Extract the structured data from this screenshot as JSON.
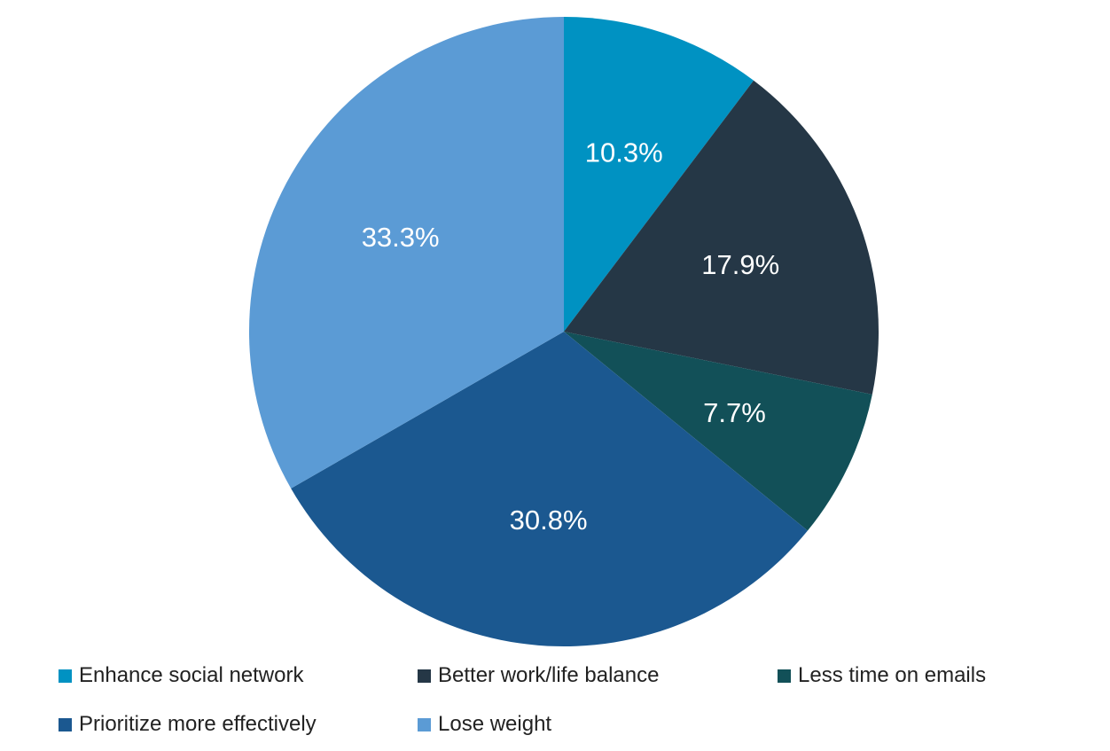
{
  "chart_data": {
    "type": "pie",
    "title": "",
    "start_angle_deg": 0,
    "direction": "clockwise",
    "slices": [
      {
        "label": "Enhance social network",
        "value": 10.3,
        "value_label": "10.3%",
        "color": "#0092C2"
      },
      {
        "label": "Better work/life balance",
        "value": 17.9,
        "value_label": "17.9%",
        "color": "#253746"
      },
      {
        "label": "Less time on emails",
        "value": 7.7,
        "value_label": "7.7%",
        "color": "#125058"
      },
      {
        "label": "Prioritize more effectively",
        "value": 30.8,
        "value_label": "30.8%",
        "color": "#1B5890"
      },
      {
        "label": "Lose weight",
        "value": 33.3,
        "value_label": "33.3%",
        "color": "#5B9BD5"
      }
    ],
    "legend_position": "bottom"
  },
  "legend": {
    "items": [
      {
        "label": "Enhance social network",
        "color": "#0092C2"
      },
      {
        "label": "Better work/life balance",
        "color": "#253746"
      },
      {
        "label": "Less time on emails",
        "color": "#125058"
      },
      {
        "label": "Prioritize more effectively",
        "color": "#1B5890"
      },
      {
        "label": "Lose weight",
        "color": "#5B9BD5"
      }
    ]
  }
}
